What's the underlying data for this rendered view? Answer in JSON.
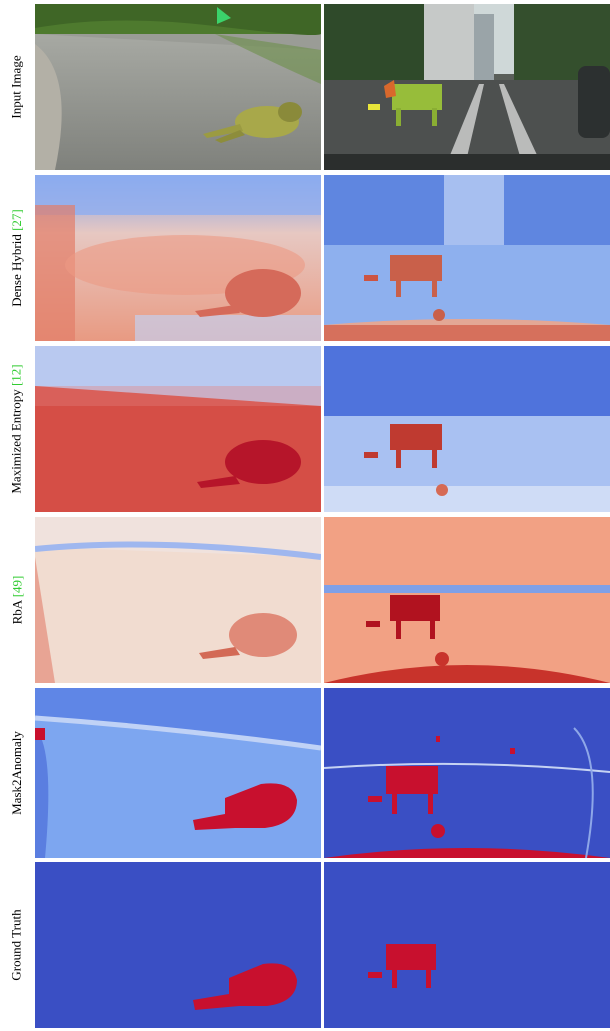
{
  "rows": [
    {
      "label": "Input Image",
      "ref": ""
    },
    {
      "label": "Dense Hybrid",
      "ref": "[27]"
    },
    {
      "label": "Maximized Entropy",
      "ref": "[12]"
    },
    {
      "label": "RbA",
      "ref": "[49]"
    },
    {
      "label": "Mask2Anomaly",
      "ref": ""
    },
    {
      "label": "Ground Truth",
      "ref": ""
    }
  ],
  "colors": {
    "anomaly_red": "#c8102e",
    "normal_blue": "#3a4fc4",
    "light_blue": "#7da6f0",
    "pale": "#f1dcd0",
    "salmon": "#f2a184",
    "road_gray": "#8a8c86",
    "grass_green": "#5e8f3a",
    "sky": "#dde6ea"
  }
}
